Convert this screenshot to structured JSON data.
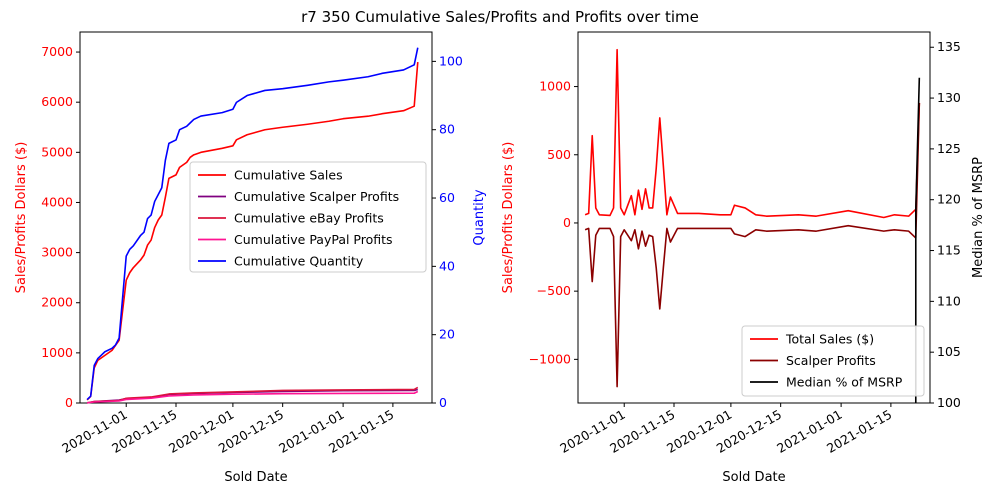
{
  "title": "r7 350 Cumulative Sales/Profits and Profits over time",
  "colors": {
    "cum_sales": "#ff0000",
    "cum_scalper": "#800080",
    "cum_ebay": "#dc143c",
    "cum_paypal": "#ff1493",
    "cum_quantity": "#0000ff",
    "sales": "#ff0000",
    "scalper": "#8b0000",
    "median": "#000000"
  },
  "chart_data": [
    {
      "type": "line",
      "xlabel": "Sold Date",
      "ylabel": "Sales/Profits Dollars ($)",
      "ylabel2": "Quantity",
      "x_axis": "date",
      "xlim": [
        "2020-10-19",
        "2021-01-26"
      ],
      "ylim": [
        0,
        7400
      ],
      "ylim2": [
        0,
        108.6
      ],
      "xticks": [
        "2020-11-01",
        "2020-11-15",
        "2020-12-01",
        "2020-12-15",
        "2021-01-01",
        "2021-01-15"
      ],
      "yticks": [
        0,
        1000,
        2000,
        3000,
        4000,
        5000,
        6000,
        7000
      ],
      "yticks2": [
        0,
        20,
        40,
        60,
        80,
        100
      ],
      "legend": "center-right",
      "grid": false,
      "series": [
        {
          "name": "Cumulative Sales",
          "axis": "left",
          "color_key": "cum_sales",
          "points": [
            [
              "2020-10-21",
              60
            ],
            [
              "2020-10-22",
              130
            ],
            [
              "2020-10-23",
              700
            ],
            [
              "2020-10-24",
              850
            ],
            [
              "2020-10-25",
              900
            ],
            [
              "2020-10-26",
              950
            ],
            [
              "2020-10-28",
              1050
            ],
            [
              "2020-10-29",
              1150
            ],
            [
              "2020-10-30",
              1250
            ],
            [
              "2020-11-01",
              2450
            ],
            [
              "2020-11-02",
              2600
            ],
            [
              "2020-11-03",
              2700
            ],
            [
              "2020-11-05",
              2850
            ],
            [
              "2020-11-06",
              2950
            ],
            [
              "2020-11-07",
              3150
            ],
            [
              "2020-11-08",
              3250
            ],
            [
              "2020-11-09",
              3500
            ],
            [
              "2020-11-10",
              3650
            ],
            [
              "2020-11-11",
              3750
            ],
            [
              "2020-11-12",
              4100
            ],
            [
              "2020-11-13",
              4480
            ],
            [
              "2020-11-15",
              4550
            ],
            [
              "2020-11-16",
              4700
            ],
            [
              "2020-11-18",
              4800
            ],
            [
              "2020-11-19",
              4900
            ],
            [
              "2020-11-20",
              4950
            ],
            [
              "2020-11-22",
              5000
            ],
            [
              "2020-11-28",
              5080
            ],
            [
              "2020-12-01",
              5130
            ],
            [
              "2020-12-02",
              5250
            ],
            [
              "2020-12-05",
              5350
            ],
            [
              "2020-12-10",
              5450
            ],
            [
              "2020-12-15",
              5500
            ],
            [
              "2020-12-22",
              5560
            ],
            [
              "2020-12-28",
              5620
            ],
            [
              "2021-01-01",
              5670
            ],
            [
              "2021-01-08",
              5720
            ],
            [
              "2021-01-12",
              5770
            ],
            [
              "2021-01-18",
              5830
            ],
            [
              "2021-01-21",
              5920
            ],
            [
              "2021-01-22",
              6800
            ]
          ]
        },
        {
          "name": "Cumulative Scalper Profits",
          "axis": "left",
          "color_key": "cum_scalper",
          "points": [
            [
              "2020-10-21",
              0
            ],
            [
              "2020-10-23",
              30
            ],
            [
              "2020-10-30",
              60
            ],
            [
              "2020-11-01",
              90
            ],
            [
              "2020-11-08",
              110
            ],
            [
              "2020-11-13",
              170
            ],
            [
              "2020-11-20",
              190
            ],
            [
              "2020-12-01",
              210
            ],
            [
              "2020-12-15",
              230
            ],
            [
              "2021-01-01",
              245
            ],
            [
              "2021-01-21",
              250
            ],
            [
              "2021-01-22",
              270
            ]
          ]
        },
        {
          "name": "Cumulative eBay Profits",
          "axis": "left",
          "color_key": "cum_ebay",
          "points": [
            [
              "2020-10-21",
              5
            ],
            [
              "2020-10-23",
              30
            ],
            [
              "2020-10-30",
              50
            ],
            [
              "2020-11-01",
              95
            ],
            [
              "2020-11-08",
              120
            ],
            [
              "2020-11-13",
              180
            ],
            [
              "2020-11-20",
              200
            ],
            [
              "2020-12-01",
              220
            ],
            [
              "2020-12-15",
              250
            ],
            [
              "2021-01-01",
              260
            ],
            [
              "2021-01-21",
              270
            ],
            [
              "2021-01-22",
              310
            ]
          ]
        },
        {
          "name": "Cumulative PayPal Profits",
          "axis": "left",
          "color_key": "cum_paypal",
          "points": [
            [
              "2020-10-21",
              3
            ],
            [
              "2020-10-23",
              20
            ],
            [
              "2020-10-30",
              40
            ],
            [
              "2020-11-01",
              70
            ],
            [
              "2020-11-08",
              95
            ],
            [
              "2020-11-13",
              140
            ],
            [
              "2020-11-20",
              160
            ],
            [
              "2020-12-01",
              175
            ],
            [
              "2020-12-15",
              185
            ],
            [
              "2021-01-01",
              190
            ],
            [
              "2021-01-21",
              195
            ],
            [
              "2021-01-22",
              230
            ]
          ]
        },
        {
          "name": "Cumulative Quantity",
          "axis": "right",
          "color_key": "cum_quantity",
          "points": [
            [
              "2020-10-21",
              1
            ],
            [
              "2020-10-22",
              2
            ],
            [
              "2020-10-23",
              11
            ],
            [
              "2020-10-24",
              13
            ],
            [
              "2020-10-25",
              14
            ],
            [
              "2020-10-26",
              15
            ],
            [
              "2020-10-28",
              16
            ],
            [
              "2020-10-29",
              17
            ],
            [
              "2020-10-30",
              19
            ],
            [
              "2020-11-01",
              43
            ],
            [
              "2020-11-02",
              45
            ],
            [
              "2020-11-03",
              46
            ],
            [
              "2020-11-05",
              49
            ],
            [
              "2020-11-06",
              50
            ],
            [
              "2020-11-07",
              54
            ],
            [
              "2020-11-08",
              55
            ],
            [
              "2020-11-09",
              59
            ],
            [
              "2020-11-10",
              61
            ],
            [
              "2020-11-11",
              63
            ],
            [
              "2020-11-12",
              71
            ],
            [
              "2020-11-13",
              76
            ],
            [
              "2020-11-15",
              77
            ],
            [
              "2020-11-16",
              80
            ],
            [
              "2020-11-18",
              81
            ],
            [
              "2020-11-19",
              82
            ],
            [
              "2020-11-20",
              83
            ],
            [
              "2020-11-22",
              84
            ],
            [
              "2020-11-28",
              85
            ],
            [
              "2020-12-01",
              86
            ],
            [
              "2020-12-02",
              88
            ],
            [
              "2020-12-05",
              90
            ],
            [
              "2020-12-10",
              91.5
            ],
            [
              "2020-12-15",
              92
            ],
            [
              "2020-12-22",
              93
            ],
            [
              "2020-12-28",
              94
            ],
            [
              "2021-01-01",
              94.5
            ],
            [
              "2021-01-08",
              95.5
            ],
            [
              "2021-01-12",
              96.5
            ],
            [
              "2021-01-18",
              97.5
            ],
            [
              "2021-01-21",
              99
            ],
            [
              "2021-01-22",
              104
            ]
          ]
        }
      ]
    },
    {
      "type": "line",
      "xlabel": "Sold Date",
      "ylabel": "Sales/Profits Dollars ($)",
      "ylabel2": "Median % of MSRP",
      "x_axis": "date",
      "xlim": [
        "2020-10-19",
        "2021-01-26"
      ],
      "ylim": [
        -1320,
        1400
      ],
      "ylim2": [
        100,
        136.5
      ],
      "xticks": [
        "2020-11-01",
        "2020-11-15",
        "2020-12-01",
        "2020-12-15",
        "2021-01-01",
        "2021-01-15"
      ],
      "yticks": [
        -1000,
        -500,
        0,
        500,
        1000
      ],
      "yticks2": [
        100,
        105,
        110,
        115,
        120,
        125,
        130,
        135
      ],
      "legend": "bottom-right",
      "grid": false,
      "series": [
        {
          "name": "Total Sales ($)",
          "axis": "left",
          "color_key": "sales",
          "points": [
            [
              "2020-10-21",
              60
            ],
            [
              "2020-10-22",
              70
            ],
            [
              "2020-10-23",
              640
            ],
            [
              "2020-10-24",
              110
            ],
            [
              "2020-10-25",
              60
            ],
            [
              "2020-10-28",
              55
            ],
            [
              "2020-10-29",
              110
            ],
            [
              "2020-10-30",
              1270
            ],
            [
              "2020-10-31",
              110
            ],
            [
              "2020-11-01",
              60
            ],
            [
              "2020-11-03",
              200
            ],
            [
              "2020-11-04",
              60
            ],
            [
              "2020-11-05",
              240
            ],
            [
              "2020-11-06",
              100
            ],
            [
              "2020-11-07",
              250
            ],
            [
              "2020-11-08",
              110
            ],
            [
              "2020-11-09",
              110
            ],
            [
              "2020-11-10",
              400
            ],
            [
              "2020-11-11",
              770
            ],
            [
              "2020-11-12",
              420
            ],
            [
              "2020-11-13",
              60
            ],
            [
              "2020-11-14",
              190
            ],
            [
              "2020-11-16",
              70
            ],
            [
              "2020-11-22",
              70
            ],
            [
              "2020-11-28",
              60
            ],
            [
              "2020-12-01",
              60
            ],
            [
              "2020-12-02",
              130
            ],
            [
              "2020-12-05",
              110
            ],
            [
              "2020-12-08",
              60
            ],
            [
              "2020-12-11",
              50
            ],
            [
              "2020-12-20",
              60
            ],
            [
              "2020-12-25",
              50
            ],
            [
              "2021-01-03",
              90
            ],
            [
              "2021-01-13",
              40
            ],
            [
              "2021-01-16",
              60
            ],
            [
              "2021-01-20",
              50
            ],
            [
              "2021-01-22",
              100
            ],
            [
              "2021-01-23",
              880
            ]
          ]
        },
        {
          "name": "Scalper Profits",
          "axis": "left",
          "color_key": "scalper",
          "points": [
            [
              "2020-10-21",
              -50
            ],
            [
              "2020-10-22",
              -40
            ],
            [
              "2020-10-23",
              -430
            ],
            [
              "2020-10-24",
              -90
            ],
            [
              "2020-10-25",
              -40
            ],
            [
              "2020-10-28",
              -40
            ],
            [
              "2020-10-29",
              -100
            ],
            [
              "2020-10-30",
              -1200
            ],
            [
              "2020-10-31",
              -100
            ],
            [
              "2020-11-01",
              -50
            ],
            [
              "2020-11-03",
              -130
            ],
            [
              "2020-11-04",
              -50
            ],
            [
              "2020-11-05",
              -190
            ],
            [
              "2020-11-06",
              -60
            ],
            [
              "2020-11-07",
              -170
            ],
            [
              "2020-11-08",
              -90
            ],
            [
              "2020-11-09",
              -100
            ],
            [
              "2020-11-10",
              -330
            ],
            [
              "2020-11-11",
              -630
            ],
            [
              "2020-11-12",
              -330
            ],
            [
              "2020-11-13",
              -40
            ],
            [
              "2020-11-14",
              -140
            ],
            [
              "2020-11-16",
              -40
            ],
            [
              "2020-11-22",
              -40
            ],
            [
              "2020-11-28",
              -40
            ],
            [
              "2020-12-01",
              -40
            ],
            [
              "2020-12-02",
              -80
            ],
            [
              "2020-12-05",
              -100
            ],
            [
              "2020-12-08",
              -50
            ],
            [
              "2020-12-11",
              -60
            ],
            [
              "2020-12-20",
              -50
            ],
            [
              "2020-12-25",
              -60
            ],
            [
              "2021-01-03",
              -20
            ],
            [
              "2021-01-13",
              -60
            ],
            [
              "2021-01-16",
              -50
            ],
            [
              "2021-01-20",
              -60
            ],
            [
              "2021-01-22",
              -110
            ],
            [
              "2021-01-23",
              880
            ]
          ]
        },
        {
          "name": "Median % of MSRP",
          "axis": "right",
          "color_key": "median",
          "points": [
            [
              "2021-01-22",
              100
            ],
            [
              "2021-01-22",
              119
            ],
            [
              "2021-01-23",
              132
            ]
          ]
        }
      ]
    }
  ]
}
